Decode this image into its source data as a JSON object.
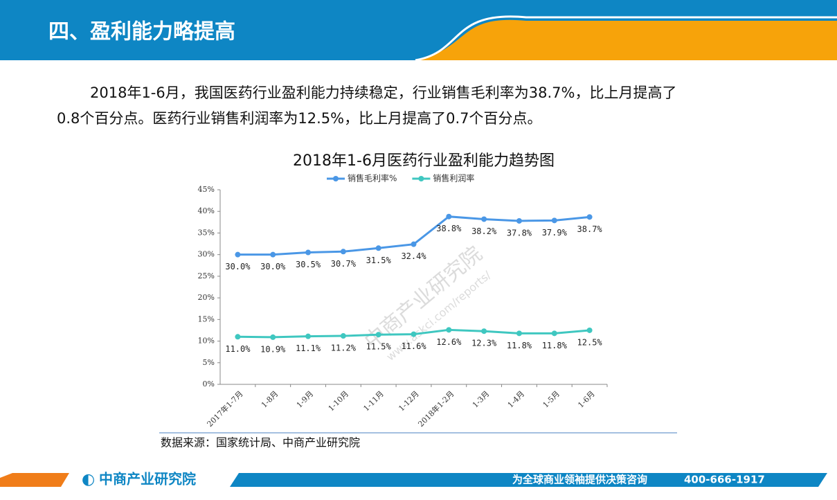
{
  "header": {
    "title": "四、盈利能力略提高"
  },
  "paragraph": {
    "lines": [
      "2018年1-6月，我国医药行业盈利能力持续稳定，行业销售毛利率为38.7%，比上月提高了",
      "0.8个百分点。医药行业销售利润率为12.5%，比上月提高了0.7个百分点。"
    ]
  },
  "chart_data": {
    "type": "line",
    "title": "2018年1-6月医药行业盈利能力趋势图",
    "categories": [
      "2017年1-7月",
      "1-8月",
      "1-9月",
      "1-10月",
      "1-11月",
      "1-12月",
      "2018年1-2月",
      "1-3月",
      "1-4月",
      "1-5月",
      "1-6月"
    ],
    "series": [
      {
        "name": "销售毛利率%",
        "color": "#4a97e6",
        "values": [
          30.0,
          30.0,
          30.5,
          30.7,
          31.5,
          32.4,
          38.8,
          38.2,
          37.8,
          37.9,
          38.7
        ],
        "value_labels": [
          "30.0%",
          "30.0%",
          "30.5%",
          "30.7%",
          "31.5%",
          "32.4%",
          "38.8%",
          "38.2%",
          "37.8%",
          "37.9%",
          "38.7%"
        ]
      },
      {
        "name": "销售利润率",
        "color": "#3fc7c0",
        "values": [
          11.0,
          10.9,
          11.1,
          11.2,
          11.5,
          11.6,
          12.6,
          12.3,
          11.8,
          11.8,
          12.5
        ],
        "value_labels": [
          "11.0%",
          "10.9%",
          "11.1%",
          "11.2%",
          "11.5%",
          "11.6%",
          "12.6%",
          "12.3%",
          "11.8%",
          "11.8%",
          "12.5%"
        ]
      }
    ],
    "ylim": [
      0,
      45
    ],
    "yticks": [
      {
        "value": 0,
        "label": "0%"
      },
      {
        "value": 5,
        "label": "5%"
      },
      {
        "value": 10,
        "label": "10%"
      },
      {
        "value": 15,
        "label": "15%"
      },
      {
        "value": 20,
        "label": "20%"
      },
      {
        "value": 25,
        "label": "25%"
      },
      {
        "value": 30,
        "label": "30%"
      },
      {
        "value": 35,
        "label": "35%"
      },
      {
        "value": 40,
        "label": "40%"
      },
      {
        "value": 45,
        "label": "45%"
      }
    ],
    "legend": "top"
  },
  "watermark": [
    "中商产业研究院",
    "www.askci.com/reports/"
  ],
  "source": "数据来源：国家统计局、中商产业研究院",
  "footer": {
    "logo": "中商产业研究院",
    "slogan": "为全球商业领袖提供决策咨询",
    "phone": "400-666-1917"
  }
}
